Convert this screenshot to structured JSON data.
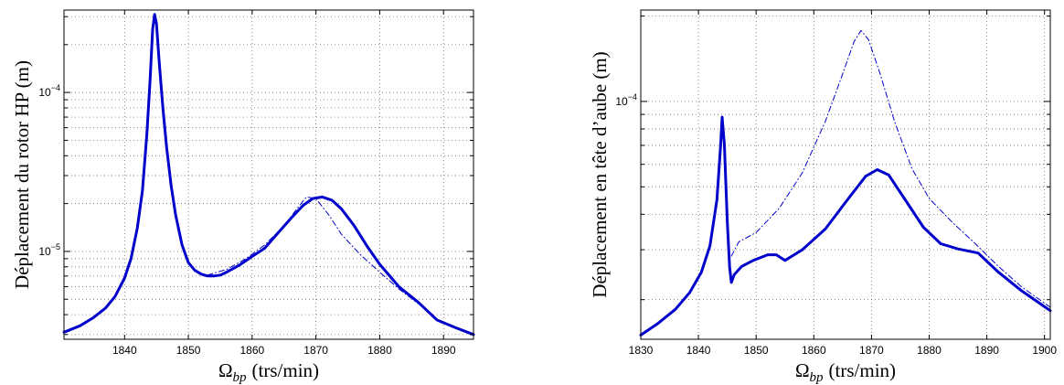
{
  "chart_data": [
    {
      "type": "line",
      "title": "",
      "xlabel": "Ω_bp (trs/min)",
      "xlabel_symbol": "Ω",
      "xlabel_subscript": "bp",
      "xlabel_unit": "(trs/min)",
      "ylabel": "Déplacement du rotor HP (m)",
      "xlim": [
        1830.5,
        1894.7
      ],
      "ylim": [
        2.8e-06,
        0.00033
      ],
      "yscale": "log",
      "grid": true,
      "xticks": [
        1840,
        1850,
        1860,
        1870,
        1880,
        1890
      ],
      "xtick_labels": [
        "1840",
        "1850",
        "1860",
        "1870",
        "1880",
        "1890"
      ],
      "yticks_major": [
        {
          "value": 1e-05,
          "base": "10",
          "exp": "−5"
        },
        {
          "value": 0.0001,
          "base": "10",
          "exp": "−4"
        }
      ],
      "series": [
        {
          "style": "solid",
          "color": "#0000cc",
          "x": [
            1830.5,
            1833,
            1835,
            1837,
            1838.5,
            1840,
            1841,
            1842,
            1842.8,
            1843.5,
            1844,
            1844.4,
            1844.7,
            1845,
            1845.4,
            1846,
            1846.6,
            1847.3,
            1848,
            1849,
            1850,
            1851,
            1852,
            1853,
            1854,
            1855,
            1856,
            1858,
            1860,
            1862,
            1864,
            1866,
            1868,
            1869.5,
            1871,
            1872.5,
            1874,
            1876,
            1878,
            1880,
            1883,
            1886,
            1889,
            1892,
            1894.7
          ],
          "y": [
            3.1e-06,
            3.4e-06,
            3.8e-06,
            4.4e-06,
            5.2e-06,
            6.8e-06,
            9e-06,
            1.4e-05,
            2.4e-05,
            5.5e-05,
            0.00012,
            0.00025,
            0.00031,
            0.00027,
            0.00016,
            8e-05,
            4.5e-05,
            2.6e-05,
            1.7e-05,
            1.1e-05,
            8.5e-06,
            7.6e-06,
            7.2e-06,
            7e-06,
            7e-06,
            7.1e-06,
            7.4e-06,
            8.2e-06,
            9.3e-06,
            1.05e-05,
            1.3e-05,
            1.6e-05,
            1.95e-05,
            2.15e-05,
            2.2e-05,
            2.1e-05,
            1.85e-05,
            1.45e-05,
            1.08e-05,
            8.3e-06,
            6e-06,
            4.8e-06,
            3.7e-06,
            3.3e-06,
            3e-06
          ]
        },
        {
          "style": "dashdot",
          "color": "#0000cc",
          "x": [
            1853,
            1856,
            1859,
            1862,
            1865,
            1867,
            1868.5,
            1870,
            1872,
            1874,
            1877,
            1880,
            1883,
            1886
          ],
          "y": [
            7.1e-06,
            7.7e-06,
            9e-06,
            1.1e-05,
            1.45e-05,
            1.85e-05,
            2.2e-05,
            2.15e-05,
            1.7e-05,
            1.28e-05,
            9.5e-06,
            7.4e-06,
            5.8e-06,
            4.7e-06
          ]
        }
      ]
    },
    {
      "type": "line",
      "title": "",
      "xlabel": "Ω_bp (trs/min)",
      "xlabel_symbol": "Ω",
      "xlabel_subscript": "bp",
      "xlabel_unit": "(trs/min)",
      "ylabel": "Déplacement en tête d’aube (m)",
      "xlim": [
        1830,
        1901
      ],
      "ylim": [
        1.45e-05,
        0.00021
      ],
      "yscale": "log",
      "grid": true,
      "xticks": [
        1830,
        1840,
        1850,
        1860,
        1870,
        1880,
        1890,
        1900
      ],
      "xtick_labels": [
        "1830",
        "1840",
        "1850",
        "1860",
        "1870",
        "1880",
        "1890",
        "1900"
      ],
      "yticks_major": [
        {
          "value": 0.0001,
          "base": "10",
          "exp": "−4"
        }
      ],
      "series": [
        {
          "style": "solid",
          "color": "#0000cc",
          "x": [
            1830,
            1833,
            1836,
            1838.5,
            1840.5,
            1842,
            1843.2,
            1843.8,
            1844.1,
            1844.5,
            1845,
            1845.4,
            1845.7,
            1846.2,
            1847.5,
            1849.5,
            1852,
            1853.5,
            1855,
            1858,
            1862,
            1866,
            1869,
            1871,
            1873,
            1876,
            1879,
            1882,
            1885,
            1888.5,
            1892,
            1896,
            1901
          ],
          "y": [
            1.5e-05,
            1.65e-05,
            1.85e-05,
            2.12e-05,
            2.5e-05,
            3.1e-05,
            4.5e-05,
            6.8e-05,
            8.8e-05,
            7e-05,
            3.8e-05,
            2.6e-05,
            2.3e-05,
            2.45e-05,
            2.62e-05,
            2.75e-05,
            2.88e-05,
            2.88e-05,
            2.75e-05,
            3e-05,
            3.55e-05,
            4.55e-05,
            5.45e-05,
            5.75e-05,
            5.5e-05,
            4.45e-05,
            3.6e-05,
            3.15e-05,
            3.02e-05,
            2.92e-05,
            2.5e-05,
            2.15e-05,
            1.83e-05
          ]
        },
        {
          "style": "dashdot",
          "color": "#0000cc",
          "x": [
            1845.7,
            1847,
            1850,
            1854,
            1858,
            1862,
            1865,
            1867,
            1868.2,
            1869.5,
            1871.5,
            1874,
            1877,
            1880,
            1884,
            1888,
            1892,
            1896,
            1901
          ],
          "y": [
            2.85e-05,
            3.2e-05,
            3.45e-05,
            4.2e-05,
            5.6e-05,
            8.5e-05,
            0.000125,
            0.000163,
            0.000178,
            0.000165,
            0.000125,
            8.5e-05,
            5.8e-05,
            4.55e-05,
            3.75e-05,
            3.15e-05,
            2.62e-05,
            2.22e-05,
            1.88e-05
          ]
        }
      ]
    }
  ]
}
